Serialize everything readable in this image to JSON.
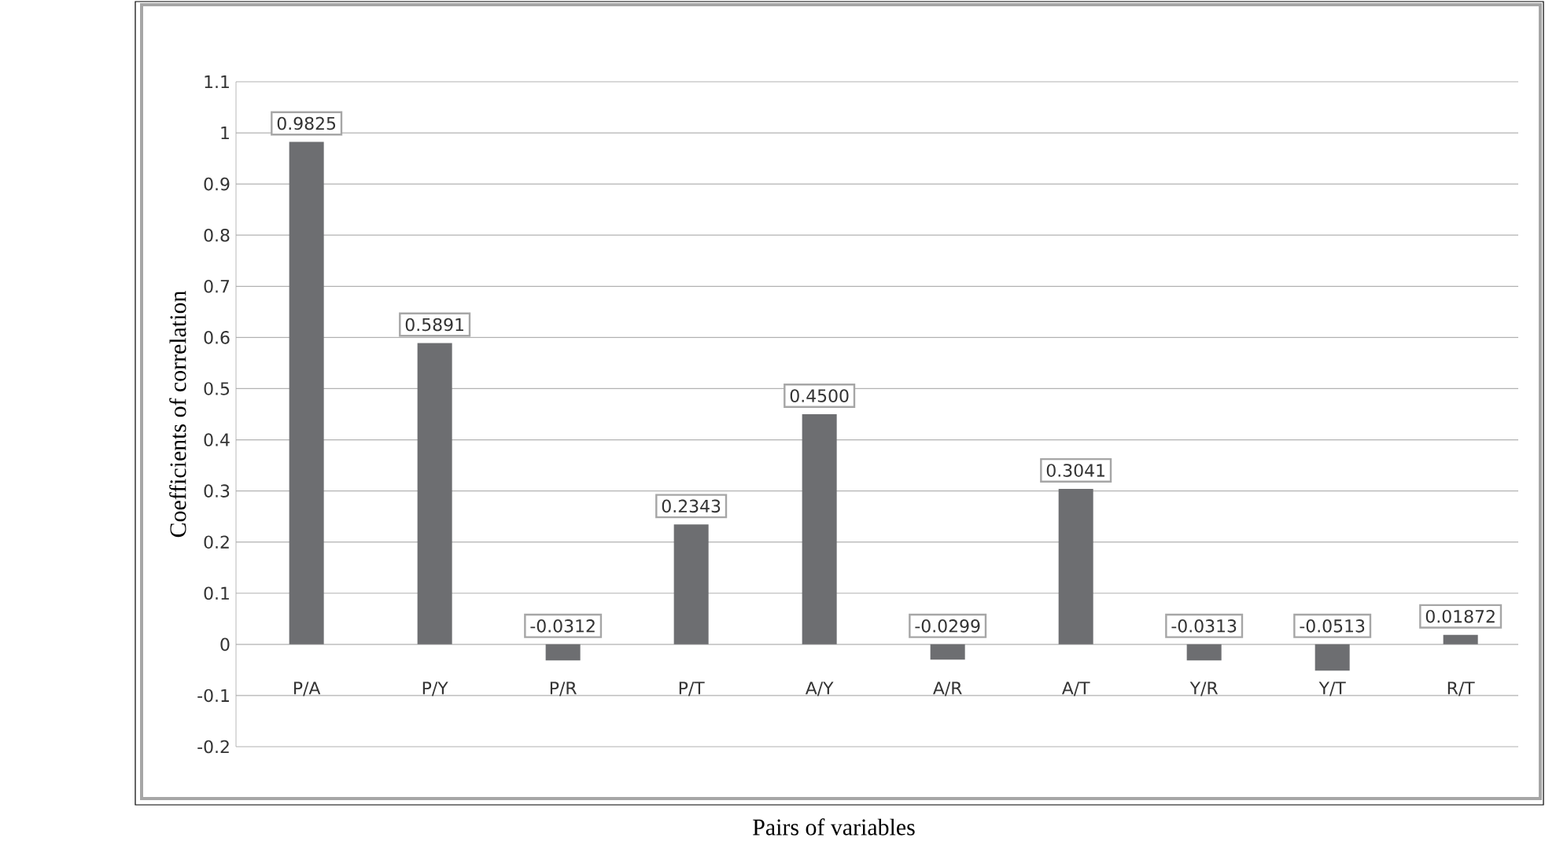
{
  "chart_data": {
    "type": "bar",
    "xlabel": "Pairs of variables",
    "ylabel": "Coefficients of correlation",
    "categories": [
      "P/A",
      "P/Y",
      "P/R",
      "P/T",
      "A/Y",
      "A/R",
      "A/T",
      "Y/R",
      "Y/T",
      "R/T"
    ],
    "values": [
      0.9825,
      0.5891,
      -0.0312,
      0.2343,
      0.45,
      -0.0299,
      0.3041,
      -0.0313,
      -0.0513,
      0.01872
    ],
    "value_labels": [
      "0.9825",
      "0.5891",
      "-0.0312",
      "0.2343",
      "0.4500",
      "-0.0299",
      "0.3041",
      "-0.0313",
      "-0.0513",
      "0.01872"
    ],
    "color": "#6d6e71",
    "ylim": [
      -0.2,
      1.1
    ],
    "yticks": [
      -0.2,
      -0.1,
      0,
      0.1,
      0.2,
      0.3,
      0.4,
      0.5,
      0.6,
      0.7,
      0.8,
      0.9,
      1,
      1.1
    ],
    "grid": "y"
  }
}
